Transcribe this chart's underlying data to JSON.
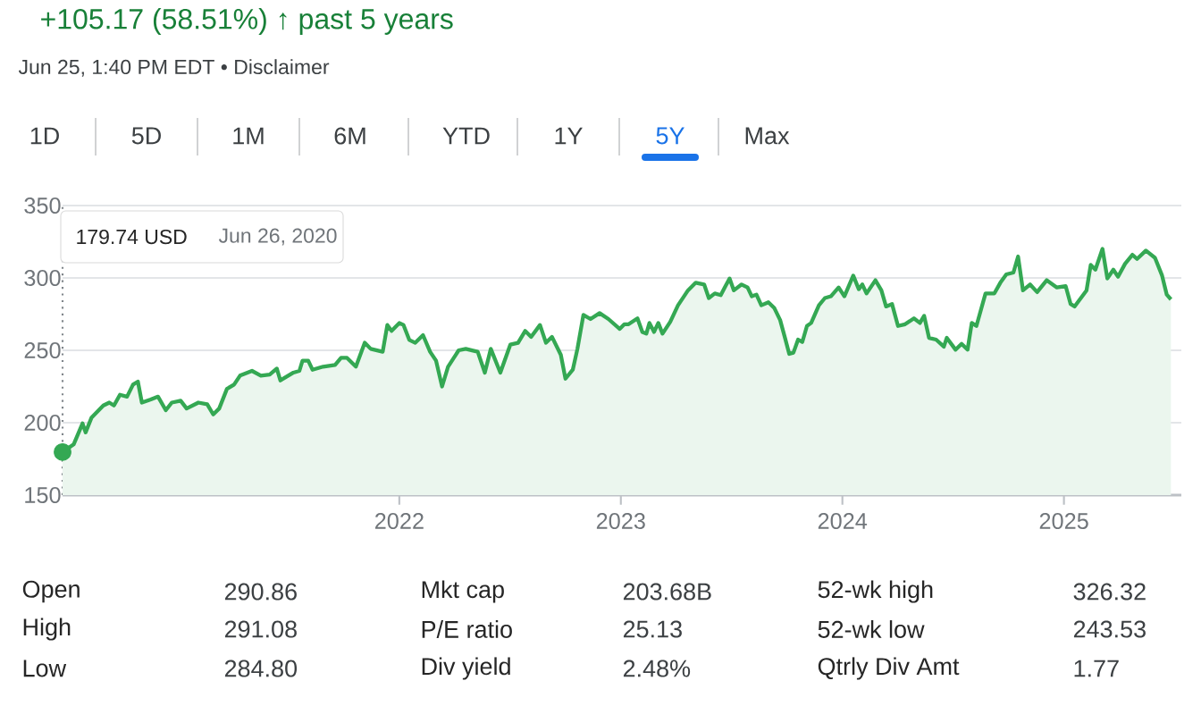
{
  "chart_data": {
    "type": "area",
    "title": "+105.17 (58.51%) ↑ past 5 years",
    "subtitle": "Jun 25, 1:40 PM EDT • Disclaimer",
    "annotations": [
      "1D",
      "5D",
      "1M",
      "6M",
      "YTD",
      "1Y",
      "5Y",
      "Max",
      "179.74 USD",
      "Jun 26, 2020",
      "Open",
      "290.86",
      "Mkt cap",
      "203.68B",
      "52-wk high",
      "326.32",
      "High",
      "291.08",
      "P/E ratio",
      "25.13",
      "52-wk low",
      "243.53",
      "Low",
      "284.80",
      "Div yield",
      "2.48%",
      "Qtrly Div Amt",
      "1.77"
    ],
    "xlim": [
      2020.48,
      2025.53
    ],
    "xticks": [
      2022,
      2023,
      2024,
      2025
    ],
    "ylim": [
      150,
      350
    ],
    "yticks": [
      150,
      200,
      250,
      300,
      350
    ],
    "grid": "y",
    "ref_lines": [
      {
        "axis": "x",
        "value": 2020.48,
        "color": "#80868b",
        "line_style": "dotted"
      }
    ],
    "series": [
      {
        "color": "#34a853",
        "x": [
          2020.48,
          2020.53,
          2020.57,
          2020.584,
          2020.611,
          2020.664,
          2020.691,
          2020.712,
          2020.739,
          2020.771,
          2020.798,
          2020.82,
          2020.838,
          2020.878,
          2020.911,
          2020.946,
          2020.973,
          2021.013,
          2021.04,
          2021.093,
          2021.133,
          2021.16,
          2021.187,
          2021.222,
          2021.254,
          2021.281,
          2021.335,
          2021.375,
          2021.415,
          2021.447,
          2021.463,
          2021.522,
          2021.549,
          2021.563,
          2021.589,
          2021.608,
          2021.656,
          2021.71,
          2021.737,
          2021.764,
          2021.804,
          2021.844,
          2021.871,
          2021.925,
          2021.946,
          2021.965,
          2022.0,
          2022.019,
          2022.045,
          2022.072,
          2022.107,
          2022.139,
          2022.166,
          2022.193,
          2022.22,
          2022.268,
          2022.3,
          2022.354,
          2022.386,
          2022.413,
          2022.456,
          2022.501,
          2022.536,
          2022.568,
          2022.595,
          2022.635,
          2022.662,
          2022.689,
          2022.729,
          2022.75,
          2022.783,
          2022.804,
          2022.831,
          2022.863,
          2022.904,
          2022.944,
          2022.995,
          2023.016,
          2023.035,
          2023.075,
          2023.097,
          2023.115,
          2023.129,
          2023.15,
          2023.169,
          2023.188,
          2023.223,
          2023.258,
          2023.303,
          2023.338,
          2023.376,
          2023.397,
          2023.424,
          2023.451,
          2023.472,
          2023.491,
          2023.51,
          2023.545,
          2023.572,
          2023.591,
          2023.612,
          2023.634,
          2023.666,
          2023.693,
          2023.719,
          2023.741,
          2023.76,
          2023.779,
          2023.8,
          2023.819,
          2023.84,
          2023.859,
          2023.894,
          2023.921,
          2023.948,
          2023.983,
          2024.009,
          2024.049,
          2024.074,
          2024.09,
          2024.109,
          2024.149,
          2024.176,
          2024.197,
          2024.224,
          2024.251,
          2024.283,
          2024.323,
          2024.35,
          2024.369,
          2024.391,
          2024.423,
          2024.458,
          2024.471,
          2024.511,
          2024.538,
          2024.565,
          2024.584,
          2024.605,
          2024.646,
          2024.686,
          2024.713,
          2024.74,
          2024.772,
          2024.793,
          2024.815,
          2024.847,
          2024.879,
          2024.922,
          2024.968,
          2025.008,
          2025.03,
          2025.048,
          2025.102,
          2025.121,
          2025.142,
          2025.174,
          2025.196,
          2025.223,
          2025.244,
          2025.276,
          2025.309,
          2025.33,
          2025.37,
          2025.411,
          2025.443,
          2025.464,
          2025.483
        ],
        "values": [
          179.74,
          185.0,
          199.5,
          193.3,
          203.6,
          211.9,
          213.9,
          211.9,
          219.3,
          218.0,
          226.3,
          228.4,
          213.9,
          216.0,
          218.0,
          208.6,
          213.9,
          215.2,
          209.8,
          213.9,
          212.7,
          205.7,
          209.8,
          223.4,
          226.3,
          232.5,
          235.8,
          232.5,
          233.3,
          237.4,
          229.2,
          234.6,
          235.8,
          242.8,
          242.8,
          236.6,
          238.7,
          239.9,
          244.8,
          244.8,
          238.7,
          255.2,
          251.0,
          249.0,
          267.5,
          263.4,
          268.8,
          267.5,
          257.2,
          255.2,
          260.5,
          249.0,
          242.8,
          225.0,
          238.7,
          250.0,
          251.0,
          249.0,
          234.6,
          251.0,
          234.6,
          253.9,
          255.2,
          263.4,
          259.3,
          267.5,
          255.2,
          259.3,
          246.9,
          230.4,
          236.6,
          251.0,
          274.5,
          271.6,
          275.7,
          271.6,
          264.8,
          268.0,
          268.0,
          272.1,
          262.7,
          261.5,
          268.9,
          262.7,
          268.9,
          261.5,
          269.7,
          281.1,
          291.4,
          296.7,
          295.5,
          286.1,
          289.3,
          288.1,
          294.3,
          299.6,
          291.4,
          295.5,
          293.4,
          287.3,
          288.5,
          281.1,
          283.2,
          279.1,
          270.9,
          258.6,
          247.5,
          248.4,
          257.4,
          255.7,
          266.8,
          268.9,
          281.1,
          286.1,
          287.3,
          293.4,
          287.3,
          301.6,
          292.2,
          295.5,
          289.3,
          298.4,
          291.4,
          280.3,
          282.0,
          266.8,
          268.0,
          272.1,
          268.9,
          273.8,
          258.6,
          257.4,
          252.5,
          258.6,
          250.4,
          254.5,
          250.4,
          268.9,
          266.8,
          289.3,
          289.3,
          296.7,
          302.5,
          303.7,
          314.8,
          291.4,
          295.5,
          290.2,
          298.4,
          293.4,
          294.3,
          282.0,
          280.3,
          291.4,
          309.0,
          305.7,
          320.1,
          299.6,
          305.7,
          300.8,
          309.8,
          316.0,
          313.1,
          318.9,
          313.9,
          301.6,
          288.5,
          285.2
        ]
      },
      {
        "type": "scatter",
        "color": "#34a853",
        "x": [
          2020.48
        ],
        "values": [
          179.74
        ]
      }
    ]
  }
}
